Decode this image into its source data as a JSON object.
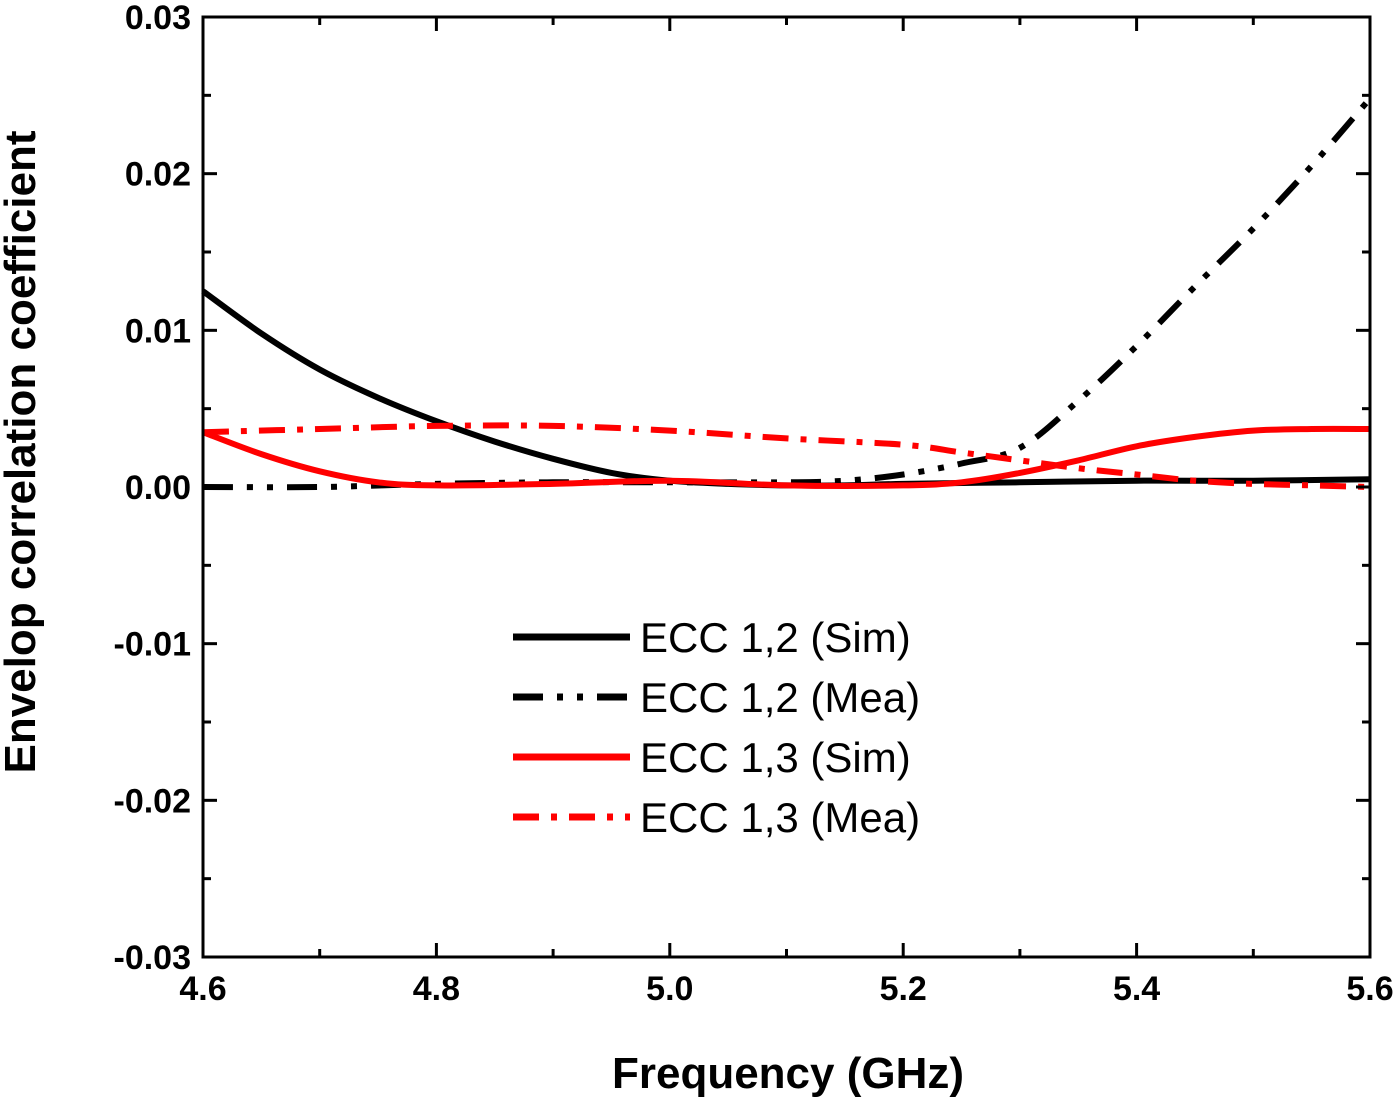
{
  "chart_data": {
    "type": "line",
    "title": "",
    "xlabel": "Frequency (GHz)",
    "ylabel": "Envelop correlation coefficient",
    "xlim": [
      4.6,
      5.6
    ],
    "ylim": [
      -0.03,
      0.03
    ],
    "xticks": [
      "4.6",
      "4.8",
      "5.0",
      "5.2",
      "5.4",
      "5.6"
    ],
    "yticks": [
      "-0.03",
      "-0.02",
      "-0.01",
      "0.00",
      "0.01",
      "0.02",
      "0.03"
    ],
    "grid": false,
    "legend_position": "lower-center",
    "series": [
      {
        "name": "ECC 1,2 (Sim)",
        "color": "#000000",
        "style": "solid",
        "x": [
          4.6,
          4.65,
          4.7,
          4.75,
          4.8,
          4.85,
          4.9,
          4.95,
          5.0,
          5.05,
          5.1,
          5.15,
          5.2,
          5.3,
          5.4,
          5.5,
          5.6
        ],
        "y": [
          0.0125,
          0.0098,
          0.0075,
          0.0057,
          0.0042,
          0.0029,
          0.0018,
          0.0009,
          0.0004,
          0.0002,
          0.0001,
          0.0001,
          0.0002,
          0.0003,
          0.0004,
          0.0004,
          0.0005
        ]
      },
      {
        "name": "ECC 1,2 (Mea)",
        "color": "#000000",
        "style": "dash-dot-dot",
        "x": [
          4.6,
          4.7,
          4.8,
          4.9,
          5.0,
          5.1,
          5.15,
          5.2,
          5.25,
          5.3,
          5.35,
          5.4,
          5.45,
          5.5,
          5.55,
          5.6
        ],
        "y": [
          0.0,
          0.0,
          0.0002,
          0.0003,
          0.0003,
          0.0003,
          0.0004,
          0.0008,
          0.0015,
          0.0025,
          0.0055,
          0.009,
          0.0128,
          0.0165,
          0.0205,
          0.0248
        ]
      },
      {
        "name": "ECC 1,3 (Sim)",
        "color": "#ff0000",
        "style": "solid",
        "x": [
          4.6,
          4.65,
          4.7,
          4.75,
          4.8,
          4.9,
          5.0,
          5.1,
          5.2,
          5.25,
          5.3,
          5.35,
          5.4,
          5.45,
          5.5,
          5.55,
          5.6
        ],
        "y": [
          0.0035,
          0.0021,
          0.001,
          0.0003,
          0.0001,
          0.0002,
          0.0004,
          0.0001,
          0.0001,
          0.0003,
          0.0009,
          0.0017,
          0.0026,
          0.0032,
          0.0036,
          0.0037,
          0.0037
        ]
      },
      {
        "name": "ECC 1,3 (Mea)",
        "color": "#ff0000",
        "style": "dash-dot",
        "x": [
          4.6,
          4.7,
          4.8,
          4.9,
          5.0,
          5.1,
          5.2,
          5.25,
          5.3,
          5.35,
          5.4,
          5.45,
          5.5,
          5.55,
          5.6
        ],
        "y": [
          0.0035,
          0.0037,
          0.0039,
          0.0039,
          0.0036,
          0.0031,
          0.0027,
          0.0022,
          0.0017,
          0.0012,
          0.0008,
          0.0004,
          0.0002,
          0.0001,
          0.0
        ]
      }
    ]
  }
}
